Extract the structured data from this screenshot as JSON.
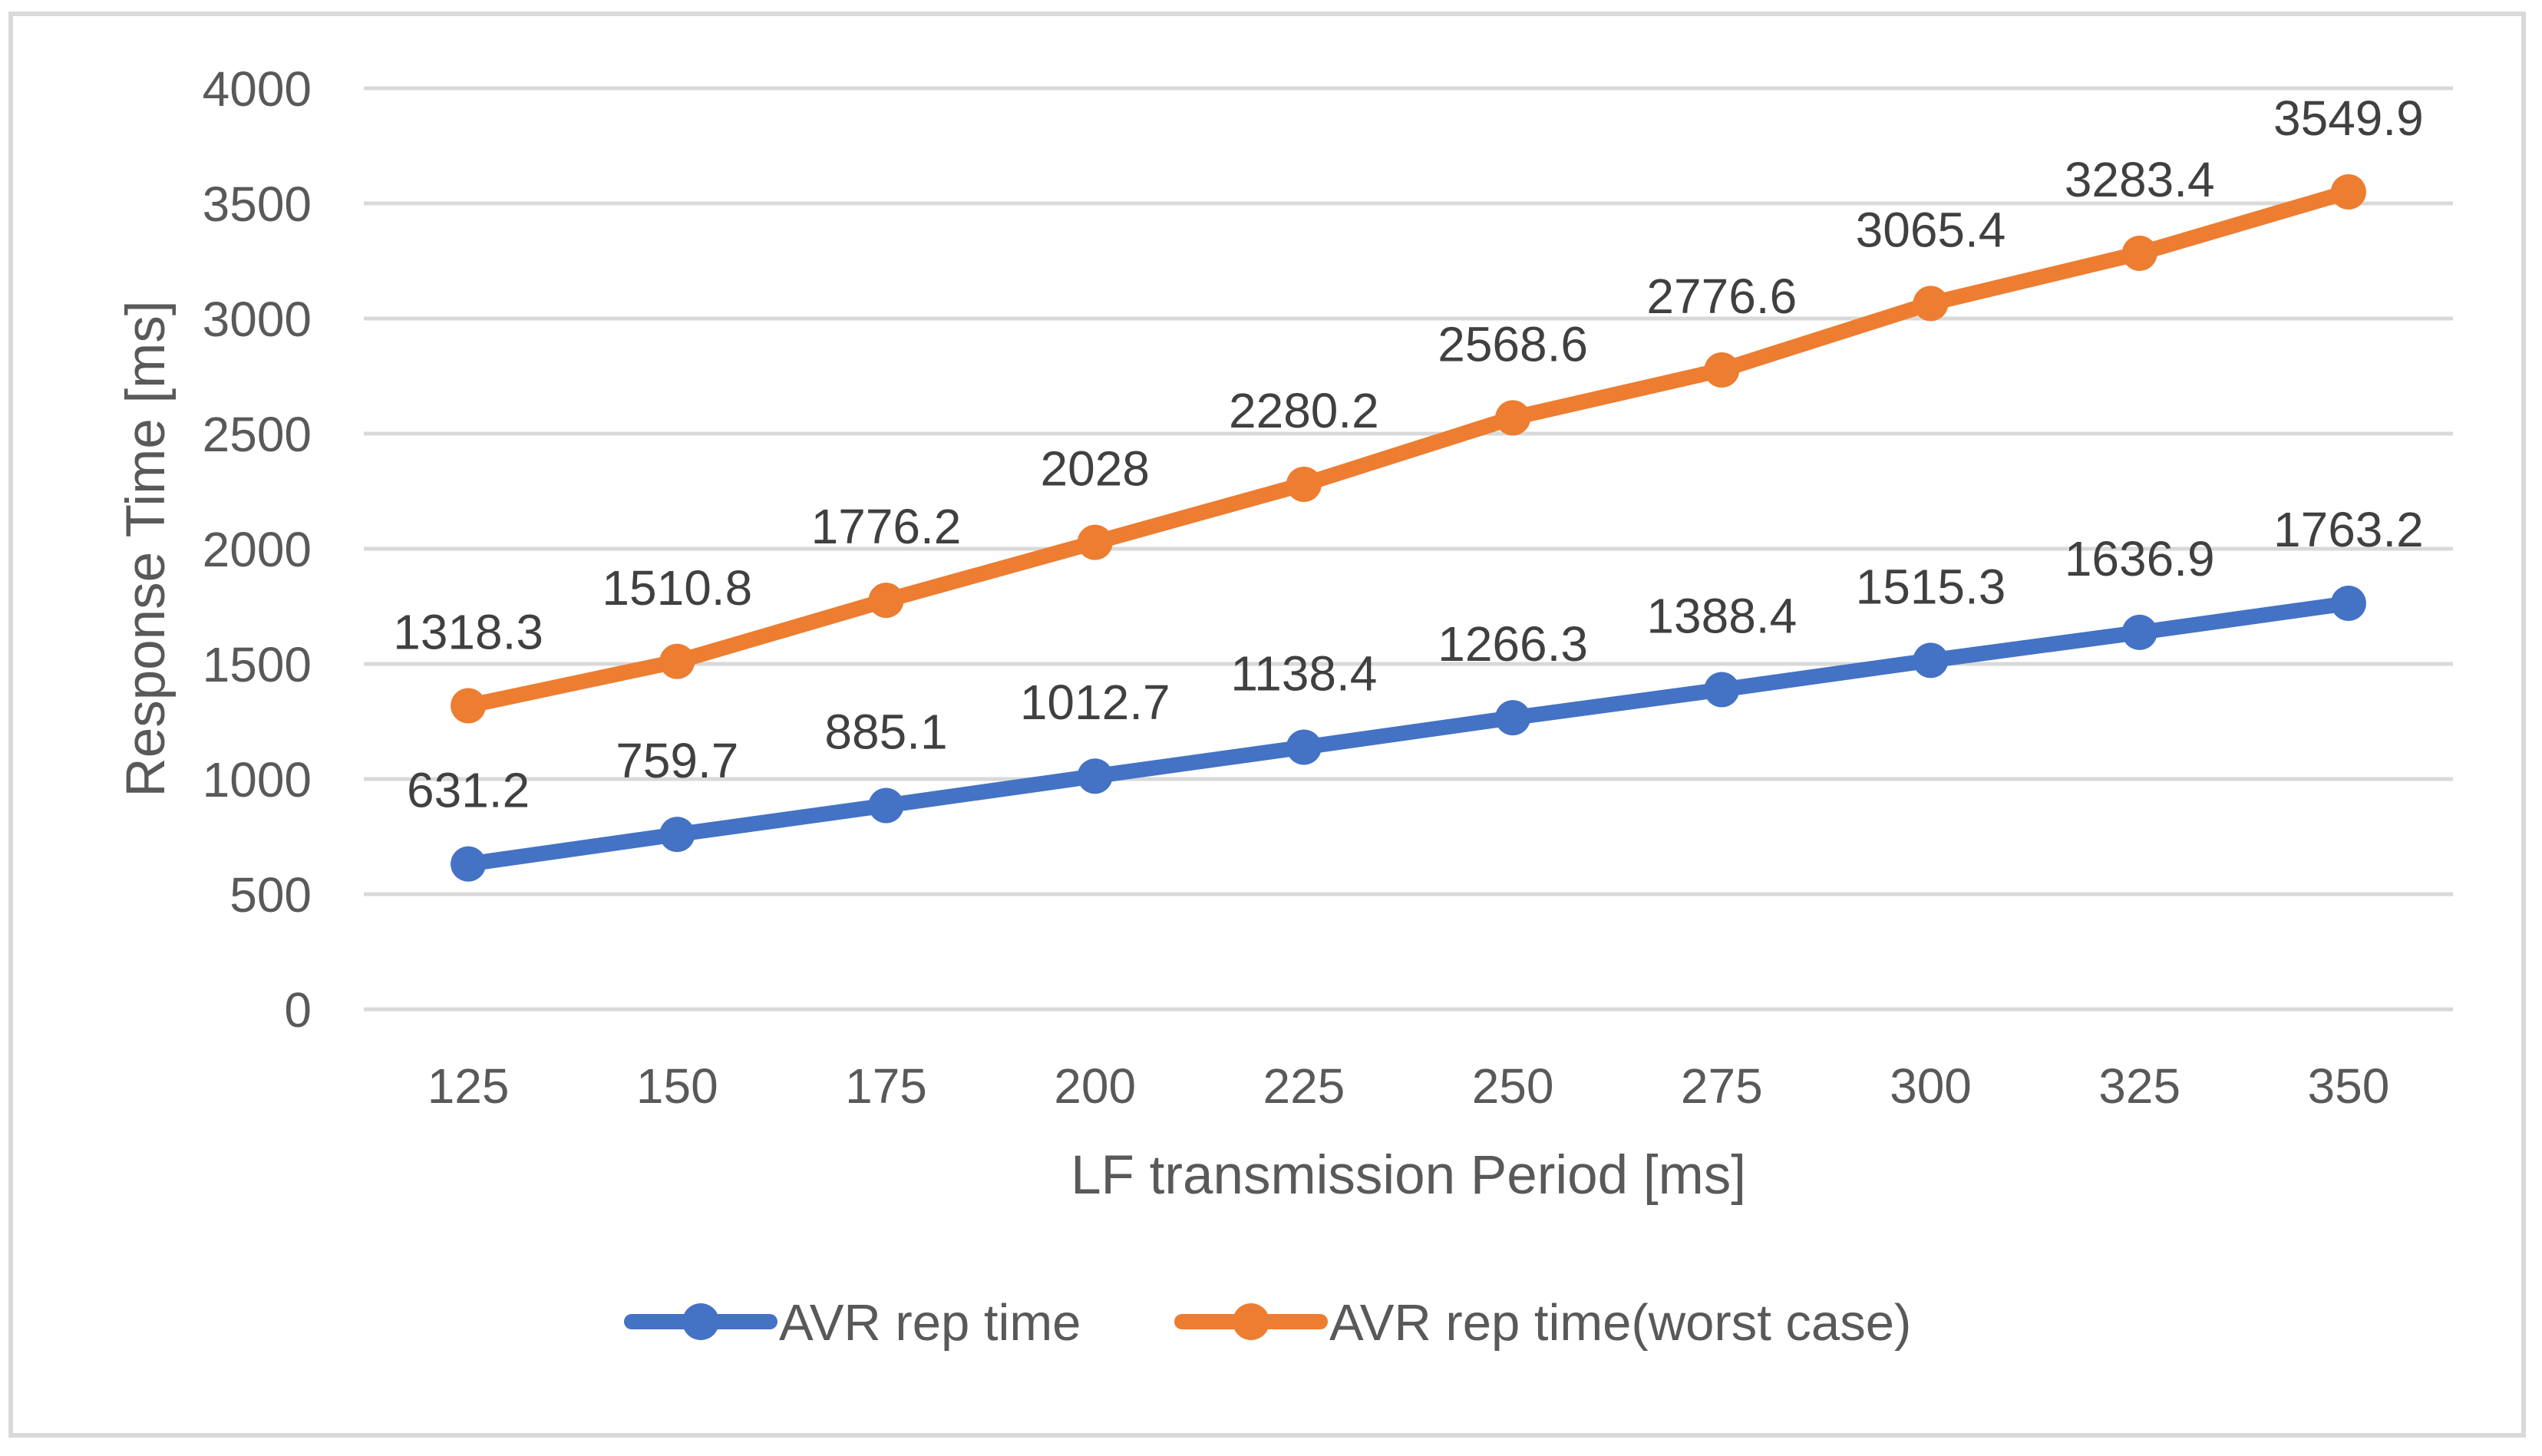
{
  "chart_data": {
    "type": "line",
    "title": "",
    "xlabel": "LF transmission Period [ms]",
    "ylabel": "Response Time [ms]",
    "x": [
      125,
      150,
      175,
      200,
      225,
      250,
      275,
      300,
      325,
      350
    ],
    "ylim": [
      0,
      4000
    ],
    "yticks": [
      0,
      500,
      1000,
      1500,
      2000,
      2500,
      3000,
      3500,
      4000
    ],
    "grid": true,
    "gridline_color": "#D9D9D9",
    "plot_border_color": "#D9D9D9",
    "legend_position": "bottom",
    "data_labels_shown": true,
    "series": [
      {
        "name": "AVR rep time",
        "color": "#4472C4",
        "marker": "circle",
        "values": [
          631.2,
          759.7,
          885.1,
          1012.7,
          1138.4,
          1266.3,
          1388.4,
          1515.3,
          1636.9,
          1763.2
        ]
      },
      {
        "name": "AVR rep time(worst case)",
        "color": "#ED7D31",
        "marker": "circle",
        "values": [
          1318.3,
          1510.8,
          1776.2,
          2028,
          2280.2,
          2568.6,
          2776.6,
          3065.4,
          3283.4,
          3549.9
        ]
      }
    ]
  },
  "colors": {
    "background": "#FFFFFF",
    "grid": "#D9D9D9",
    "border": "#D9D9D9",
    "tick_text": "#595959",
    "data_label_text": "#404040",
    "series_blue": "#4472C4",
    "series_orange": "#ED7D31"
  }
}
